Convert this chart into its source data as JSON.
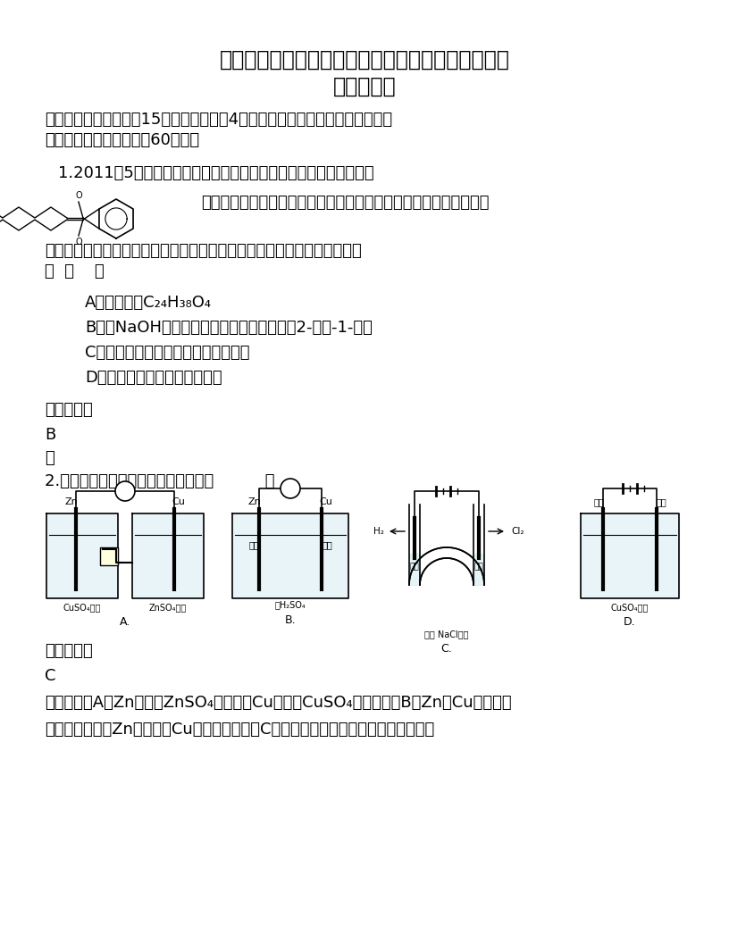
{
  "title_line1": "辽宁省大连市第五十七高级中学高二化学上学期期末",
  "title_line2": "试题含解析",
  "section1": "一、单选题（本大题共15个小题，每小题4分。在每小题给出的四个选项中，只",
  "section1b": "有一项符合题目要求，共60分。）",
  "q1_intro": "1.2011年5月下旬揭露出的台湾食品添加剂毒害事件中的核心物质为",
  "q1_text1": "，不法厂商将这种本是用于塑料生产的物质添加到饮料、食品中，从",
  "q1_text2": "而造成了人类史上最大的塑化剂污染事件，下面有关该物质的说法中错误的",
  "q1_text3": "是  （    ）",
  "q1_A": "A．分子式为C₂₄H₃₈O₄",
  "q1_B": "B．在NaOH溶液中水解会生成邻苯二甲酸与2-乙基-1-己醇",
  "q1_C": "C．该物质进入人体内会有害身体健康",
  "q1_D": "D．难溶于水，可溶于有机溶剂",
  "ref_ans": "参考答案：",
  "ans1": "B",
  "brief1": "略",
  "q2_text": "2.下图有关电化学的示意图正确的是（          ）",
  "ref_ans2": "参考答案：",
  "ans2": "C",
  "analysis_line1": "试题分析：A、Zn应放在ZnSO₄溶液中，Cu应放在CuSO₄中，错误；B、Zn、Cu、稀硫酸",
  "analysis_line2": "构成的原电池中Zn是负极，Cu是正极，错误；C、用石墨作电极电解饱和食盐水阳极得",
  "bg_color": "#ffffff",
  "text_color": "#000000"
}
